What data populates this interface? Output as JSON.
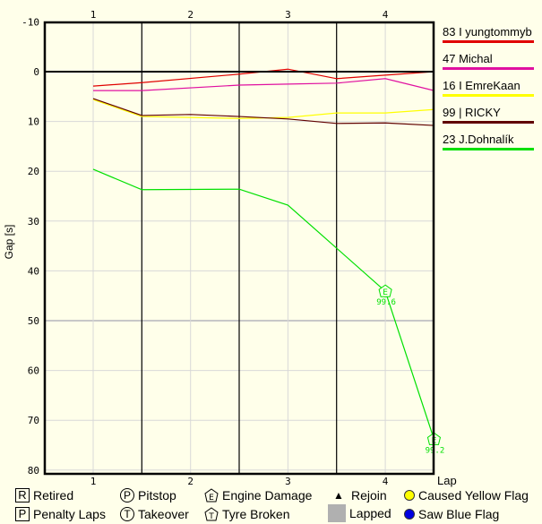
{
  "chart_data": {
    "type": "line",
    "title": "",
    "xlabel": "Lap",
    "ylabel": "Gap [s]",
    "ylim": [
      80,
      -10
    ],
    "y_ticks": [
      "-10",
      "0",
      "10",
      "20",
      "30",
      "40",
      "50",
      "60",
      "70",
      "80"
    ],
    "x_ticks": [
      "1",
      "2",
      "3",
      "4"
    ],
    "x": [
      1,
      1.5,
      2,
      2.5,
      3,
      3.5,
      4,
      4.5
    ],
    "grid": true,
    "legend_position": "right",
    "series": [
      {
        "name": "83 I yungtommyb",
        "color": "#E00000",
        "values": [
          2.9,
          2.2,
          null,
          0.5,
          -0.5,
          1.4,
          0.7,
          0.0
        ]
      },
      {
        "name": "47 Michal",
        "color": "#E010A0",
        "values": [
          3.8,
          3.8,
          null,
          2.7,
          2.5,
          2.3,
          1.4,
          3.8
        ]
      },
      {
        "name": "16 I EmreKaan",
        "color": "#FFFF00",
        "values": [
          5.6,
          9.0,
          null,
          9.4,
          9.2,
          8.3,
          8.3,
          7.6
        ]
      },
      {
        "name": "99 | RICKY",
        "color": "#600000",
        "values": [
          5.4,
          8.8,
          8.6,
          9.0,
          9.5,
          10.4,
          10.3,
          10.8
        ]
      },
      {
        "name": "23 J.Dohnalík",
        "color": "#00E000",
        "values": [
          19.6,
          23.7,
          null,
          23.6,
          26.8,
          null,
          44.1,
          73.8
        ]
      }
    ],
    "annotations": [
      {
        "series": "23 J.Dohnalík",
        "x": 4,
        "y": 44.1,
        "marker": "Engine Damage",
        "label": "99.6"
      },
      {
        "series": "23 J.Dohnalík",
        "x": 4.5,
        "y": 73.8,
        "marker": "Engine Damage",
        "label": "99.2"
      }
    ]
  },
  "legend": {
    "drivers": [
      {
        "label": "83 I yungtommyb",
        "color": "#E00000"
      },
      {
        "label": "47 Michal",
        "color": "#E010A0"
      },
      {
        "label": "16 I EmreKaan",
        "color": "#FFFF00"
      },
      {
        "label": "99 | RICKY",
        "color": "#600000"
      },
      {
        "label": "23 J.Dohnalík",
        "color": "#00E000"
      }
    ]
  },
  "key": {
    "retired": {
      "glyph": "R",
      "label": "Retired"
    },
    "penalty": {
      "glyph": "P",
      "label": "Penalty Laps"
    },
    "pitstop": {
      "glyph": "P",
      "label": "Pitstop"
    },
    "takeover": {
      "glyph": "T",
      "label": "Takeover"
    },
    "engine": {
      "glyph": "E",
      "label": "Engine Damage"
    },
    "tyre": {
      "glyph": "T",
      "label": "Tyre Broken"
    },
    "rejoin": {
      "glyph": "▲",
      "label": "Rejoin"
    },
    "lapped": {
      "label": "Lapped"
    },
    "yellow": {
      "label": "Caused Yellow Flag",
      "color": "#FFFF00"
    },
    "blue": {
      "label": "Saw Blue Flag",
      "color": "#0000E0"
    }
  }
}
